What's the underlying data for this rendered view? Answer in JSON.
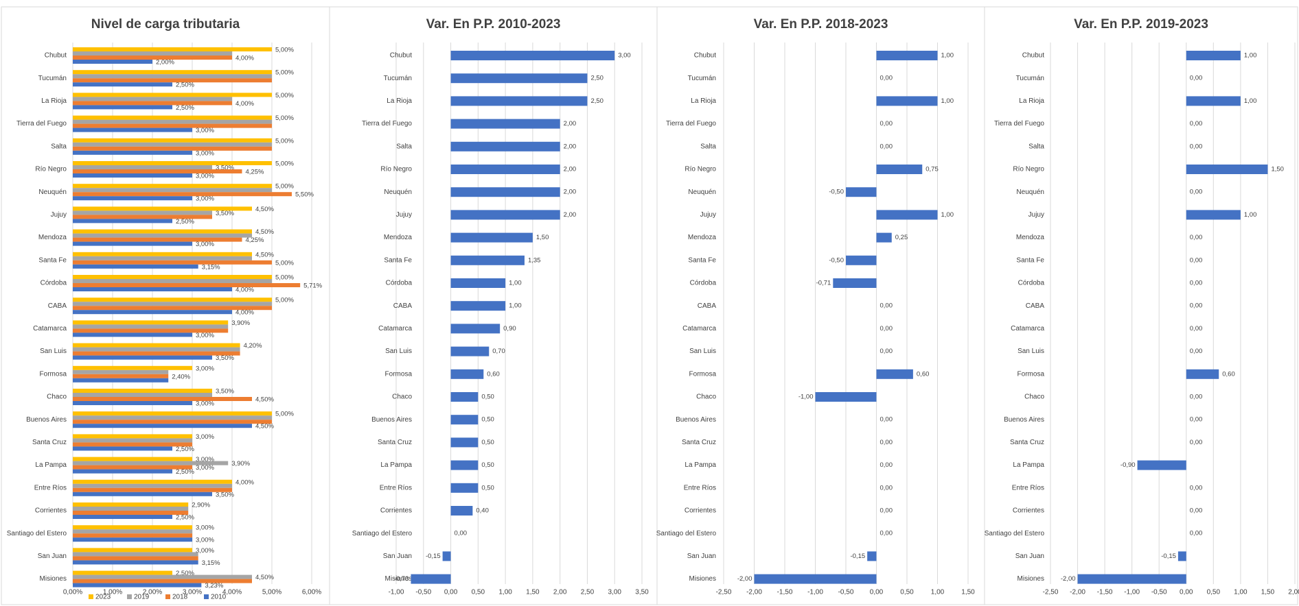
{
  "chart_data": [
    {
      "type": "bar",
      "orientation": "horizontal",
      "title": "Nivel de carga tributaria",
      "categories": [
        "Chubut",
        "Tucumán",
        "La Rioja",
        "Tierra del Fuego",
        "Salta",
        "Río Negro",
        "Neuquén",
        "Jujuy",
        "Mendoza",
        "Santa Fe",
        "Córdoba",
        "CABA",
        "Catamarca",
        "San Luis",
        "Formosa",
        "Chaco",
        "Buenos Aires",
        "Santa Cruz",
        "La Pampa",
        "Entre Ríos",
        "Corrientes",
        "Santiago del Estero",
        "San Juan",
        "Misiones"
      ],
      "series": [
        {
          "name": "2023",
          "color": "#ffc000",
          "values": [
            5,
            5,
            5,
            5,
            5,
            5,
            5,
            4.5,
            4.5,
            4.5,
            5,
            5,
            3.9,
            4.2,
            3,
            3.5,
            5,
            3,
            3,
            4,
            2.9,
            3,
            3,
            2.5
          ],
          "value_labels": [
            "5,00%",
            "5,00%",
            "5,00%",
            "5,00%",
            "5,00%",
            "5,00%",
            "5,00%",
            "4,50%",
            "4,50%",
            "4,50%",
            "5,00%",
            "5,00%",
            "3,90%",
            "4,20%",
            "3,00%",
            "3,50%",
            "5,00%",
            "3,00%",
            "3,00%",
            "4,00%",
            "2,90%",
            "3,00%",
            "3,00%",
            "2,50%"
          ]
        },
        {
          "name": "2019",
          "color": "#a5a5a5",
          "values": [
            4,
            5,
            4,
            5,
            5,
            3.5,
            5,
            3.5,
            4.5,
            4.5,
            5,
            5,
            3.9,
            4.2,
            2.4,
            3.5,
            5,
            3,
            3.9,
            4,
            2.9,
            3,
            3.15,
            4.5
          ],
          "value_labels": [
            null,
            null,
            null,
            null,
            null,
            "3,50%",
            null,
            "3,50%",
            null,
            null,
            null,
            null,
            null,
            null,
            null,
            null,
            null,
            null,
            "3,90%",
            null,
            null,
            null,
            null,
            "4,50%"
          ]
        },
        {
          "name": "2018",
          "color": "#ed7d31",
          "values": [
            4,
            5,
            4,
            5,
            5,
            4.25,
            5.5,
            3.5,
            4.25,
            5,
            5.71,
            5,
            3.9,
            4.2,
            2.4,
            4.5,
            5,
            3,
            3,
            4,
            2.9,
            3,
            3.15,
            4.5
          ],
          "value_labels": [
            "4,00%",
            null,
            "4,00%",
            null,
            null,
            "4,25%",
            "5,50%",
            null,
            "4,25%",
            "5,00%",
            "5,71%",
            null,
            null,
            null,
            "2,40%",
            "4,50%",
            null,
            null,
            "3,00%",
            null,
            null,
            null,
            null,
            null
          ]
        },
        {
          "name": "2010",
          "color": "#4472c4",
          "values": [
            2,
            2.5,
            2.5,
            3,
            3,
            3,
            3,
            2.5,
            3,
            3.15,
            4,
            4,
            3,
            3.5,
            2.4,
            3,
            4.5,
            2.5,
            2.5,
            3.5,
            2.5,
            3,
            3.15,
            3.23
          ],
          "value_labels": [
            "2,00%",
            "2,50%",
            "2,50%",
            "3,00%",
            "3,00%",
            "3,00%",
            "3,00%",
            "2,50%",
            "3,00%",
            "3,15%",
            "4,00%",
            "4,00%",
            "3,00%",
            "3,50%",
            null,
            "3,00%",
            "4,50%",
            "2,50%",
            "2,50%",
            "3,50%",
            "2,50%",
            "3,00%",
            "3,15%",
            "3,23%"
          ]
        }
      ],
      "xlim": [
        0,
        6
      ],
      "xticks": [
        {
          "value": 0,
          "label": "0,00%"
        },
        {
          "value": 1,
          "label": "1,00%"
        },
        {
          "value": 2,
          "label": "2,00%"
        },
        {
          "value": 3,
          "label": "3,00%"
        },
        {
          "value": 4,
          "label": "4,00%"
        },
        {
          "value": 5,
          "label": "5,00%"
        },
        {
          "value": 6,
          "label": "6,00%"
        }
      ],
      "grid": true,
      "legend": "bottom"
    },
    {
      "type": "bar",
      "orientation": "horizontal",
      "title": "Var. En P.P. 2010-2023",
      "categories": [
        "Chubut",
        "Tucumán",
        "La Rioja",
        "Tierra del Fuego",
        "Salta",
        "Río Negro",
        "Neuquén",
        "Jujuy",
        "Mendoza",
        "Santa Fe",
        "Córdoba",
        "CABA",
        "Catamarca",
        "San Luis",
        "Formosa",
        "Chaco",
        "Buenos Aires",
        "Santa Cruz",
        "La Pampa",
        "Entre Ríos",
        "Corrientes",
        "Santiago del Estero",
        "San Juan",
        "Misiones"
      ],
      "series": [
        {
          "color": "#4472c4",
          "values": [
            3,
            2.5,
            2.5,
            2,
            2,
            2,
            2,
            2,
            1.5,
            1.35,
            1,
            1,
            0.9,
            0.7,
            0.6,
            0.5,
            0.5,
            0.5,
            0.5,
            0.5,
            0.4,
            0,
            -0.15,
            -0.73
          ],
          "value_labels": [
            "3,00",
            "2,50",
            "2,50",
            "2,00",
            "2,00",
            "2,00",
            "2,00",
            "2,00",
            "1,50",
            "1,35",
            "1,00",
            "1,00",
            "0,90",
            "0,70",
            "0,60",
            "0,50",
            "0,50",
            "0,50",
            "0,50",
            "0,50",
            "0,40",
            "0,00",
            "-0,15",
            "-0,73"
          ]
        }
      ],
      "xlim": [
        -1,
        3.5
      ],
      "xticks": [
        {
          "value": -1,
          "label": "-1,00"
        },
        {
          "value": -0.5,
          "label": "-0,50"
        },
        {
          "value": 0,
          "label": "0,00"
        },
        {
          "value": 0.5,
          "label": "0,50"
        },
        {
          "value": 1,
          "label": "1,00"
        },
        {
          "value": 1.5,
          "label": "1,50"
        },
        {
          "value": 2,
          "label": "2,00"
        },
        {
          "value": 2.5,
          "label": "2,50"
        },
        {
          "value": 3,
          "label": "3,00"
        },
        {
          "value": 3.5,
          "label": "3,50"
        }
      ],
      "grid": true
    },
    {
      "type": "bar",
      "orientation": "horizontal",
      "title": "Var. En P.P. 2018-2023",
      "categories": [
        "Chubut",
        "Tucumán",
        "La Rioja",
        "Tierra del Fuego",
        "Salta",
        "Río Negro",
        "Neuquén",
        "Jujuy",
        "Mendoza",
        "Santa Fe",
        "Córdoba",
        "CABA",
        "Catamarca",
        "San Luis",
        "Formosa",
        "Chaco",
        "Buenos Aires",
        "Santa Cruz",
        "La Pampa",
        "Entre Ríos",
        "Corrientes",
        "Santiago del Estero",
        "San Juan",
        "Misiones"
      ],
      "series": [
        {
          "color": "#4472c4",
          "values": [
            1,
            0,
            1,
            0,
            0,
            0.75,
            -0.5,
            1,
            0.25,
            -0.5,
            -0.71,
            0,
            0,
            0,
            0.6,
            -1,
            0,
            0,
            0,
            0,
            0,
            0,
            -0.15,
            -2
          ],
          "value_labels": [
            "1,00",
            "0,00",
            "1,00",
            "0,00",
            "0,00",
            "0,75",
            "-0,50",
            "1,00",
            "0,25",
            "-0,50",
            "-0,71",
            "0,00",
            "0,00",
            "0,00",
            "0,60",
            "-1,00",
            "0,00",
            "0,00",
            "0,00",
            "0,00",
            "0,00",
            "0,00",
            "-0,15",
            "-2,00"
          ]
        }
      ],
      "xlim": [
        -2.5,
        1.5
      ],
      "xticks": [
        {
          "value": -2.5,
          "label": "-2,50"
        },
        {
          "value": -2,
          "label": "-2,00"
        },
        {
          "value": -1.5,
          "label": "-1,50"
        },
        {
          "value": -1,
          "label": "-1,00"
        },
        {
          "value": -0.5,
          "label": "-0,50"
        },
        {
          "value": 0,
          "label": "0,00"
        },
        {
          "value": 0.5,
          "label": "0,50"
        },
        {
          "value": 1,
          "label": "1,00"
        },
        {
          "value": 1.5,
          "label": "1,50"
        }
      ],
      "grid": true
    },
    {
      "type": "bar",
      "orientation": "horizontal",
      "title": "Var. En P.P. 2019-2023",
      "categories": [
        "Chubut",
        "Tucumán",
        "La Rioja",
        "Tierra del Fuego",
        "Salta",
        "Río Negro",
        "Neuquén",
        "Jujuy",
        "Mendoza",
        "Santa Fe",
        "Córdoba",
        "CABA",
        "Catamarca",
        "San Luis",
        "Formosa",
        "Chaco",
        "Buenos Aires",
        "Santa Cruz",
        "La Pampa",
        "Entre Ríos",
        "Corrientes",
        "Santiago del Estero",
        "San Juan",
        "Misiones"
      ],
      "series": [
        {
          "color": "#4472c4",
          "values": [
            1,
            0,
            1,
            0,
            0,
            1.5,
            0,
            1,
            0,
            0,
            0,
            0,
            0,
            0,
            0.6,
            0,
            0,
            0,
            -0.9,
            0,
            0,
            0,
            -0.15,
            -2
          ],
          "value_labels": [
            "1,00",
            "0,00",
            "1,00",
            "0,00",
            "0,00",
            "1,50",
            "0,00",
            "1,00",
            "0,00",
            "0,00",
            "0,00",
            "0,00",
            "0,00",
            "0,00",
            "0,60",
            "0,00",
            "0,00",
            "0,00",
            "-0,90",
            "0,00",
            "0,00",
            "0,00",
            "-0,15",
            "-2,00"
          ]
        }
      ],
      "xlim": [
        -2.5,
        2
      ],
      "xticks": [
        {
          "value": -2.5,
          "label": "-2,50"
        },
        {
          "value": -2,
          "label": "-2,00"
        },
        {
          "value": -1.5,
          "label": "-1,50"
        },
        {
          "value": -1,
          "label": "-1,00"
        },
        {
          "value": -0.5,
          "label": "-0,50"
        },
        {
          "value": 0,
          "label": "0,00"
        },
        {
          "value": 0.5,
          "label": "0,50"
        },
        {
          "value": 1,
          "label": "1,00"
        },
        {
          "value": 1.5,
          "label": "1,50"
        },
        {
          "value": 2,
          "label": "2,00"
        }
      ],
      "grid": true
    }
  ]
}
